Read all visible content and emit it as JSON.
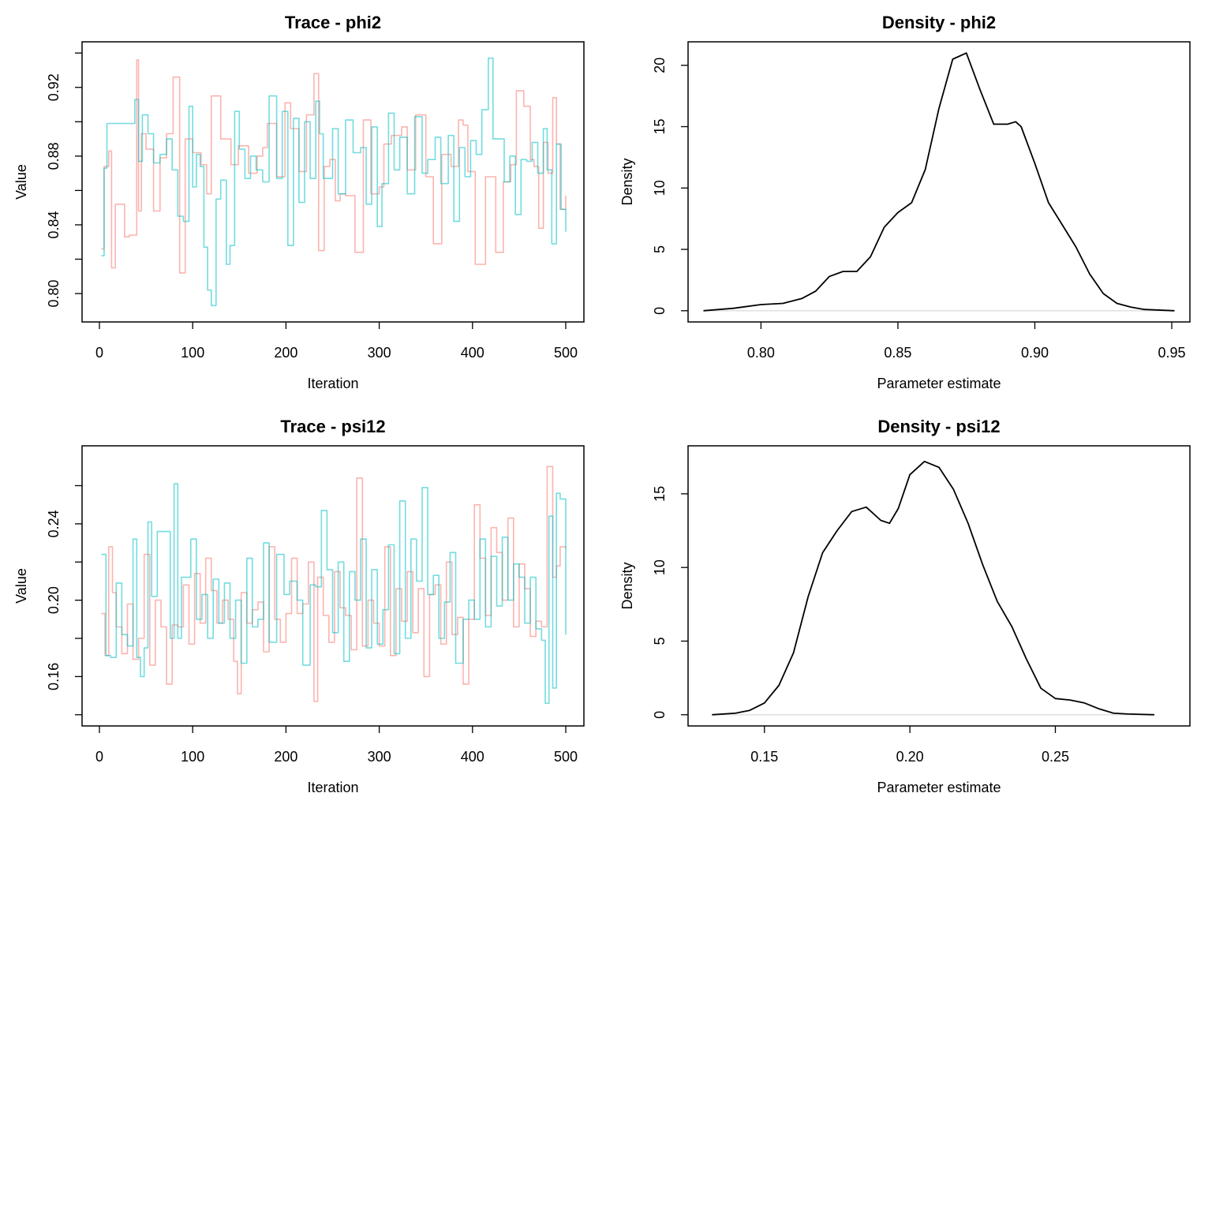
{
  "chart_data": [
    {
      "type": "line",
      "title": "Trace - phi2",
      "xlabel": "Iteration",
      "ylabel": "Value",
      "xlim": [
        0,
        500
      ],
      "ylim": [
        0.79,
        0.94
      ],
      "xticks": [
        "0",
        "100",
        "200",
        "300",
        "400",
        "500"
      ],
      "yticks": [
        "0.80",
        "0.84",
        "0.88",
        "0.92"
      ],
      "series": [
        {
          "color": "#F8766D",
          "x": [
            2,
            5,
            10,
            13,
            17,
            20,
            27,
            32,
            35,
            40,
            42,
            45,
            50,
            58,
            65,
            72,
            79,
            86,
            92,
            100,
            109,
            115,
            120,
            130,
            141,
            149,
            160,
            169,
            175,
            180,
            190,
            199,
            205,
            214,
            222,
            230,
            235,
            241,
            247,
            253,
            258,
            264,
            274,
            283,
            291,
            300,
            305,
            313,
            324,
            330,
            339,
            350,
            358,
            367,
            377,
            385,
            390,
            395,
            403,
            414,
            425,
            433,
            441,
            447,
            455,
            462,
            466,
            471,
            476,
            481,
            486,
            490,
            494,
            500
          ],
          "y": [
            0.826,
            0.874,
            0.883,
            0.815,
            0.852,
            0.852,
            0.833,
            0.834,
            0.834,
            0.936,
            0.848,
            0.893,
            0.884,
            0.848,
            0.879,
            0.893,
            0.926,
            0.812,
            0.89,
            0.882,
            0.875,
            0.858,
            0.915,
            0.89,
            0.875,
            0.886,
            0.87,
            0.88,
            0.885,
            0.899,
            0.868,
            0.911,
            0.896,
            0.871,
            0.904,
            0.928,
            0.825,
            0.874,
            0.878,
            0.854,
            0.858,
            0.857,
            0.824,
            0.901,
            0.858,
            0.862,
            0.887,
            0.892,
            0.897,
            0.872,
            0.904,
            0.868,
            0.829,
            0.881,
            0.874,
            0.901,
            0.898,
            0.871,
            0.817,
            0.868,
            0.824,
            0.865,
            0.875,
            0.918,
            0.909,
            0.878,
            0.874,
            0.838,
            0.888,
            0.87,
            0.914,
            0.887,
            0.849,
            0.857
          ]
        },
        {
          "color": "#00BFC4",
          "x": [
            2,
            5,
            8,
            12,
            18,
            25,
            32,
            38,
            42,
            46,
            52,
            58,
            65,
            72,
            78,
            84,
            90,
            96,
            100,
            104,
            108,
            112,
            116,
            120,
            125,
            130,
            136,
            140,
            145,
            150,
            156,
            162,
            168,
            175,
            182,
            190,
            196,
            202,
            208,
            214,
            220,
            226,
            232,
            236,
            240,
            246,
            250,
            256,
            264,
            272,
            280,
            286,
            292,
            298,
            303,
            310,
            316,
            322,
            330,
            338,
            346,
            352,
            360,
            366,
            374,
            380,
            386,
            392,
            398,
            404,
            410,
            417,
            422,
            428,
            434,
            440,
            446,
            452,
            458,
            464,
            470,
            476,
            480,
            485,
            490,
            495,
            500
          ],
          "y": [
            0.822,
            0.873,
            0.899,
            0.899,
            0.899,
            0.899,
            0.899,
            0.913,
            0.877,
            0.904,
            0.893,
            0.876,
            0.881,
            0.89,
            0.872,
            0.845,
            0.842,
            0.909,
            0.862,
            0.881,
            0.874,
            0.827,
            0.802,
            0.793,
            0.855,
            0.866,
            0.817,
            0.828,
            0.906,
            0.884,
            0.867,
            0.88,
            0.872,
            0.865,
            0.915,
            0.867,
            0.906,
            0.828,
            0.902,
            0.853,
            0.9,
            0.867,
            0.912,
            0.893,
            0.867,
            0.867,
            0.896,
            0.858,
            0.901,
            0.882,
            0.885,
            0.852,
            0.897,
            0.839,
            0.864,
            0.905,
            0.872,
            0.891,
            0.858,
            0.903,
            0.87,
            0.878,
            0.891,
            0.864,
            0.892,
            0.842,
            0.885,
            0.868,
            0.889,
            0.881,
            0.907,
            0.937,
            0.89,
            0.89,
            0.865,
            0.88,
            0.846,
            0.878,
            0.877,
            0.888,
            0.87,
            0.896,
            0.872,
            0.829,
            0.887,
            0.849,
            0.836
          ]
        }
      ]
    },
    {
      "type": "line",
      "title": "Density - phi2",
      "xlabel": "Parameter estimate",
      "ylabel": "Density",
      "xlim": [
        0.78,
        0.95
      ],
      "ylim": [
        0,
        21
      ],
      "xticks": [
        "0.80",
        "0.85",
        "0.90",
        "0.95"
      ],
      "yticks": [
        "0",
        "5",
        "10",
        "15",
        "20"
      ],
      "series": [
        {
          "color": "#000000",
          "x": [
            0.779,
            0.79,
            0.8,
            0.808,
            0.815,
            0.82,
            0.825,
            0.83,
            0.835,
            0.84,
            0.845,
            0.85,
            0.855,
            0.86,
            0.865,
            0.87,
            0.875,
            0.88,
            0.885,
            0.89,
            0.893,
            0.895,
            0.9,
            0.905,
            0.91,
            0.915,
            0.92,
            0.925,
            0.93,
            0.935,
            0.94,
            0.951
          ],
          "y": [
            0.0,
            0.2,
            0.5,
            0.6,
            1.0,
            1.6,
            2.8,
            3.2,
            3.2,
            4.4,
            6.8,
            8.0,
            8.8,
            11.5,
            16.5,
            20.5,
            21.0,
            18.0,
            15.2,
            15.2,
            15.4,
            15.0,
            12.0,
            8.8,
            7.0,
            5.2,
            3.0,
            1.4,
            0.6,
            0.3,
            0.1,
            0.0
          ]
        }
      ]
    },
    {
      "type": "line",
      "title": "Trace - psi12",
      "xlabel": "Iteration",
      "ylabel": "Value",
      "xlim": [
        0,
        500
      ],
      "ylim": [
        0.14,
        0.275
      ],
      "xticks": [
        "0",
        "100",
        "200",
        "300",
        "400",
        "500"
      ],
      "yticks": [
        "0.16",
        "0.20",
        "0.24"
      ],
      "series": [
        {
          "color": "#F8766D",
          "x": [
            2,
            6,
            10,
            14,
            18,
            24,
            30,
            36,
            42,
            48,
            54,
            60,
            66,
            72,
            78,
            84,
            90,
            96,
            102,
            108,
            114,
            120,
            126,
            132,
            138,
            144,
            148,
            152,
            158,
            164,
            170,
            176,
            182,
            188,
            194,
            200,
            206,
            212,
            218,
            224,
            230,
            234,
            240,
            246,
            252,
            258,
            264,
            270,
            276,
            282,
            288,
            294,
            300,
            306,
            312,
            318,
            324,
            330,
            336,
            342,
            348,
            354,
            360,
            366,
            372,
            378,
            384,
            390,
            396,
            402,
            408,
            414,
            420,
            426,
            432,
            438,
            444,
            450,
            456,
            462,
            468,
            474,
            480,
            486,
            490,
            494,
            500
          ],
          "y": [
            0.193,
            0.171,
            0.228,
            0.204,
            0.186,
            0.172,
            0.198,
            0.169,
            0.18,
            0.224,
            0.166,
            0.2,
            0.186,
            0.156,
            0.187,
            0.186,
            0.208,
            0.177,
            0.214,
            0.188,
            0.222,
            0.205,
            0.188,
            0.2,
            0.19,
            0.168,
            0.151,
            0.204,
            0.188,
            0.195,
            0.199,
            0.173,
            0.228,
            0.19,
            0.178,
            0.193,
            0.222,
            0.193,
            0.198,
            0.22,
            0.147,
            0.212,
            0.192,
            0.178,
            0.215,
            0.196,
            0.192,
            0.174,
            0.264,
            0.176,
            0.2,
            0.188,
            0.176,
            0.228,
            0.171,
            0.206,
            0.189,
            0.215,
            0.183,
            0.206,
            0.16,
            0.203,
            0.208,
            0.177,
            0.22,
            0.182,
            0.191,
            0.156,
            0.19,
            0.25,
            0.222,
            0.192,
            0.238,
            0.225,
            0.2,
            0.243,
            0.186,
            0.219,
            0.206,
            0.181,
            0.189,
            0.186,
            0.27,
            0.212,
            0.218,
            0.228,
            0.227
          ]
        },
        {
          "color": "#00BFC4",
          "x": [
            2,
            7,
            12,
            18,
            24,
            30,
            36,
            40,
            44,
            48,
            52,
            56,
            62,
            70,
            76,
            80,
            84,
            88,
            92,
            98,
            104,
            110,
            116,
            122,
            128,
            134,
            140,
            146,
            152,
            158,
            164,
            170,
            176,
            182,
            190,
            198,
            204,
            212,
            218,
            226,
            232,
            238,
            244,
            250,
            256,
            262,
            268,
            274,
            280,
            286,
            292,
            298,
            304,
            310,
            316,
            322,
            328,
            334,
            340,
            346,
            352,
            358,
            364,
            370,
            376,
            382,
            390,
            396,
            402,
            408,
            414,
            420,
            426,
            432,
            438,
            444,
            450,
            456,
            462,
            468,
            474,
            478,
            482,
            486,
            490,
            494,
            500
          ],
          "y": [
            0.224,
            0.171,
            0.17,
            0.209,
            0.182,
            0.176,
            0.232,
            0.17,
            0.16,
            0.175,
            0.241,
            0.202,
            0.236,
            0.236,
            0.18,
            0.261,
            0.18,
            0.212,
            0.212,
            0.232,
            0.19,
            0.203,
            0.18,
            0.211,
            0.188,
            0.209,
            0.18,
            0.2,
            0.167,
            0.222,
            0.186,
            0.19,
            0.23,
            0.178,
            0.224,
            0.203,
            0.21,
            0.2,
            0.166,
            0.208,
            0.207,
            0.247,
            0.216,
            0.183,
            0.22,
            0.168,
            0.215,
            0.2,
            0.232,
            0.175,
            0.216,
            0.177,
            0.195,
            0.229,
            0.172,
            0.252,
            0.18,
            0.232,
            0.21,
            0.259,
            0.203,
            0.213,
            0.18,
            0.199,
            0.225,
            0.167,
            0.19,
            0.2,
            0.19,
            0.232,
            0.186,
            0.223,
            0.197,
            0.233,
            0.2,
            0.219,
            0.212,
            0.188,
            0.212,
            0.185,
            0.179,
            0.146,
            0.244,
            0.154,
            0.256,
            0.253,
            0.182
          ]
        }
      ]
    },
    {
      "type": "line",
      "title": "Density - psi12",
      "xlabel": "Parameter estimate",
      "ylabel": "Density",
      "xlim": [
        0.13,
        0.29
      ],
      "ylim": [
        0,
        17.5
      ],
      "xticks": [
        "0.15",
        "0.20",
        "0.25"
      ],
      "yticks": [
        "0",
        "5",
        "10",
        "15"
      ],
      "series": [
        {
          "color": "#000000",
          "x": [
            0.132,
            0.14,
            0.145,
            0.15,
            0.155,
            0.16,
            0.165,
            0.17,
            0.175,
            0.18,
            0.185,
            0.19,
            0.193,
            0.196,
            0.2,
            0.205,
            0.21,
            0.215,
            0.22,
            0.225,
            0.23,
            0.235,
            0.24,
            0.245,
            0.25,
            0.255,
            0.26,
            0.265,
            0.27,
            0.275,
            0.284
          ],
          "y": [
            0.0,
            0.1,
            0.3,
            0.8,
            2.0,
            4.2,
            8.0,
            11.0,
            12.5,
            13.8,
            14.1,
            13.2,
            13.0,
            14.0,
            16.3,
            17.2,
            16.8,
            15.3,
            13.0,
            10.2,
            7.7,
            6.0,
            3.8,
            1.8,
            1.1,
            1.0,
            0.8,
            0.4,
            0.1,
            0.05,
            0.0
          ]
        }
      ]
    }
  ]
}
